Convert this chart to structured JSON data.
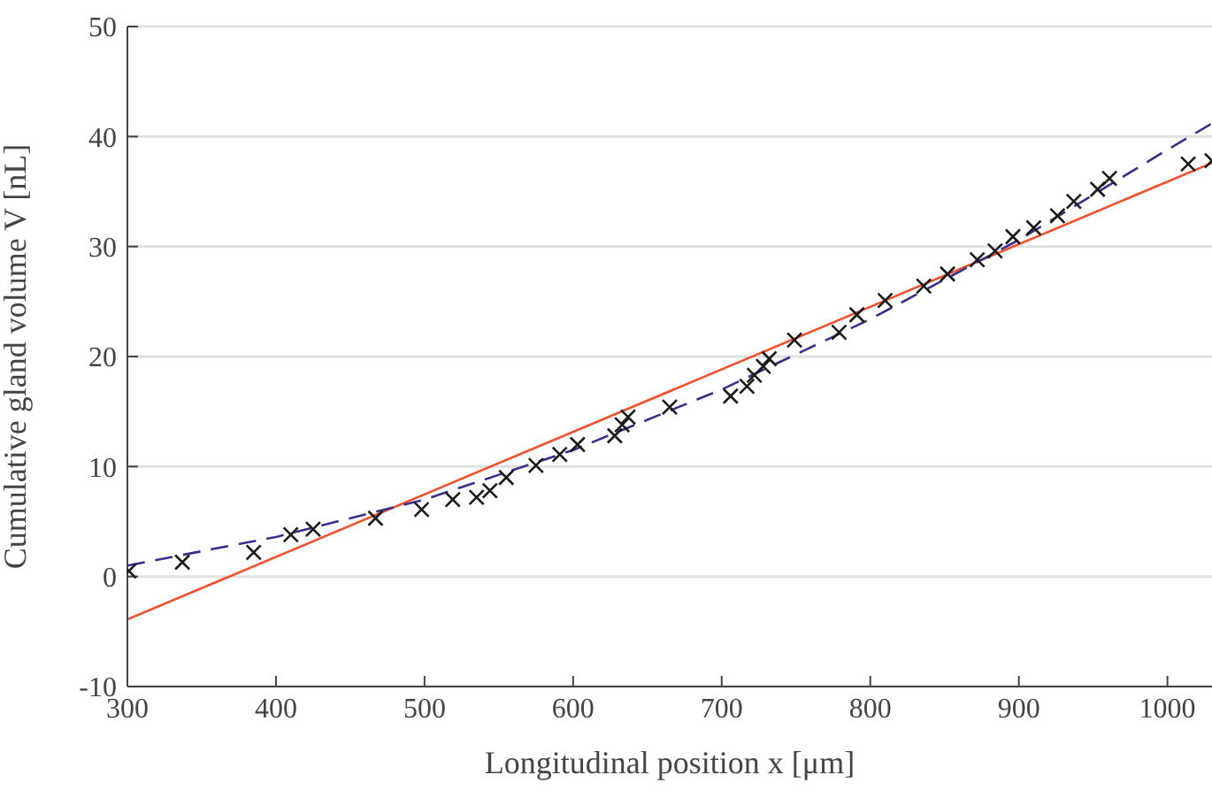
{
  "chart_data": {
    "type": "scatter",
    "xlabel": "Longitudinal position x [μm]",
    "ylabel": "Cumulative gland volume V [nL]",
    "xlim": [
      300,
      1030
    ],
    "ylim": [
      -10,
      50
    ],
    "xticks": [
      300,
      400,
      500,
      600,
      700,
      800,
      900,
      1000
    ],
    "yticks": [
      -10,
      0,
      10,
      20,
      30,
      40,
      50
    ],
    "grid": "y",
    "series": [
      {
        "color": "#1a1a1a",
        "marker": "cross",
        "x": [
          301,
          337,
          385,
          410,
          425,
          467,
          498,
          519,
          535,
          544,
          555,
          575,
          591,
          603,
          628,
          633,
          637,
          665,
          706,
          717,
          722,
          728,
          732,
          749,
          779,
          791,
          810,
          836,
          852,
          872,
          884,
          896,
          910,
          926,
          937,
          953,
          961,
          1014,
          1030
        ],
        "values": [
          0.5,
          1.3,
          2.2,
          3.8,
          4.3,
          5.3,
          6.1,
          7.0,
          7.2,
          7.8,
          9.0,
          10.1,
          11.1,
          12.0,
          12.8,
          13.8,
          14.5,
          15.4,
          16.4,
          17.3,
          18.3,
          19.1,
          19.8,
          21.5,
          22.2,
          23.8,
          25.1,
          26.4,
          27.5,
          28.8,
          29.6,
          30.9,
          31.7,
          32.8,
          34.1,
          35.2,
          36.2,
          37.5,
          37.8
        ]
      },
      {
        "type": "line",
        "color": "#f2502c",
        "marker": "none",
        "line_style": "solid",
        "x": [
          300,
          1030
        ],
        "values": [
          -3.9,
          37.6
        ]
      },
      {
        "type": "line",
        "color": "#3a2f8c",
        "marker": "none",
        "line_style": "dashed",
        "x": [
          300,
          400,
          500,
          600,
          700,
          800,
          900,
          1000,
          1030
        ],
        "values": [
          1.0,
          3.6,
          7.0,
          11.5,
          17.0,
          23.4,
          30.6,
          38.8,
          41.2
        ]
      }
    ]
  }
}
